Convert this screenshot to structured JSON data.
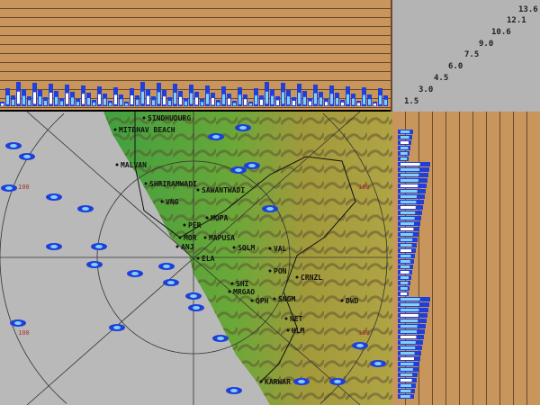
{
  "legend": {
    "heights": [
      "1.5",
      "3.0",
      "4.5",
      "6.0",
      "7.5",
      "9.0",
      "10.6",
      "12.1",
      "13.6"
    ]
  },
  "map": {
    "range_label": "100",
    "places": [
      "SINDHUDURG",
      "MITBHAV BEACH",
      "MALVAN",
      "SHRIRAMWADI",
      "SAWANTWADI",
      "VNG",
      "MOPA",
      "PER",
      "MAPUSA",
      "MOR",
      "ANJ",
      "SQLM",
      "VAL",
      "ELA",
      "PON",
      "CRNZL",
      "SHI",
      "MRGAO",
      "QPH",
      "SNGM",
      "DWD",
      "NET",
      "HLM",
      "KARWAR"
    ]
  },
  "colors": {
    "sea": "#b9b9b9",
    "land": "#4fa84a",
    "hills": "#a8a040",
    "echo_weak": "#1f3fd8",
    "echo_mid": "#7fd0ff",
    "echo_strong": "#ffffff",
    "panel": "#c8955c"
  }
}
